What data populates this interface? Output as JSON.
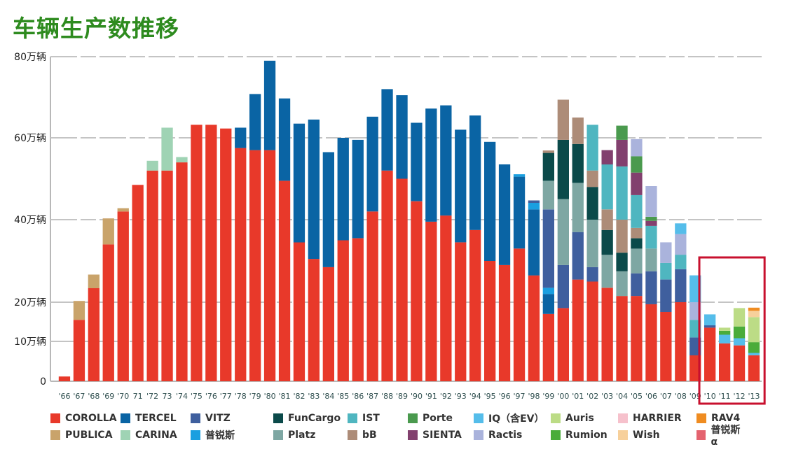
{
  "title": "车辆生产数推移",
  "chart_data": {
    "type": "bar",
    "stacked": true,
    "title": "车辆生产数推移",
    "xlabel": "",
    "ylabel": "",
    "ylim": [
      0,
      80
    ],
    "y_ticks": [
      {
        "value": 0,
        "label": "0"
      },
      {
        "value": 10,
        "label": "10万辆"
      },
      {
        "value": 20,
        "label": "20万辆"
      },
      {
        "value": 40,
        "label": "40万辆"
      },
      {
        "value": 60,
        "label": "60万辆"
      },
      {
        "value": 80,
        "label": "80万辆"
      }
    ],
    "units": "万辆",
    "grid": true,
    "legend_position": "bottom",
    "highlight": {
      "from": "'10",
      "to": "'13",
      "color": "#c8102e"
    },
    "categories": [
      "'66",
      "'67",
      "'68",
      "'69",
      "'70",
      "71",
      "'72",
      "73",
      "'74",
      "'75",
      "'76",
      "'77",
      "'78",
      "'79",
      "'80",
      "'81",
      "'82",
      "'83",
      "'84",
      "'85",
      "'86",
      "'87",
      "'88",
      "'89",
      "'90",
      "'91",
      "'92",
      "'93",
      "'94",
      "'95",
      "'96",
      "'97",
      "'98",
      "'99",
      "'00",
      "'01",
      "'02",
      "'03",
      "'04",
      "'05",
      "'06",
      "'07",
      "'08",
      "'09",
      "'10",
      "'11",
      "'12",
      "'13"
    ],
    "series": [
      {
        "name": "COROLLA",
        "color": "#e8392a",
        "values": [
          1.2,
          15.5,
          23.4,
          34,
          42,
          48.5,
          52,
          52,
          54,
          63.2,
          63.2,
          62.3,
          57.5,
          57,
          57,
          49.5,
          34.5,
          30.5,
          28.5,
          35,
          35.5,
          42,
          52,
          50,
          44.5,
          39.5,
          41,
          34.5,
          37.5,
          30,
          29,
          33,
          26.5,
          17,
          18.5,
          25.5,
          25,
          23.5,
          21.5,
          21.5,
          19.5,
          17.5,
          20,
          6.5,
          13.5,
          9.5,
          9,
          6.5
        ]
      },
      {
        "name": "PUBLICA",
        "color": "#c9a36a",
        "values": [
          0,
          4.8,
          3.3,
          6.3,
          0.8,
          0,
          0,
          0,
          0,
          0,
          0,
          0,
          0,
          0,
          0,
          0,
          0,
          0,
          0,
          0,
          0,
          0,
          0,
          0,
          0,
          0,
          0,
          0,
          0,
          0,
          0,
          0,
          0,
          0,
          0,
          0,
          0,
          0,
          0,
          0,
          0,
          0,
          0,
          0,
          0,
          0,
          0,
          0
        ]
      },
      {
        "name": "TERCEL",
        "color": "#0a64a4",
        "values": [
          0,
          0,
          0,
          0,
          0,
          0,
          0,
          0,
          0,
          0,
          0,
          0,
          5,
          13.8,
          22,
          20.2,
          29,
          34,
          28,
          25,
          24,
          23.2,
          20,
          20.5,
          19.2,
          27.7,
          27,
          27.5,
          28,
          29,
          24.5,
          17.5,
          16,
          5,
          0,
          0,
          0,
          0,
          0,
          0,
          0,
          0,
          0,
          0,
          0,
          0,
          0,
          0
        ]
      },
      {
        "name": "CARINA",
        "color": "#9fd3b4",
        "values": [
          0,
          0,
          0,
          0,
          0,
          0,
          2.4,
          10.5,
          1.3,
          0,
          0,
          0,
          0,
          0,
          0,
          0,
          0,
          0,
          0,
          0,
          0,
          0,
          0,
          0,
          0,
          0,
          0,
          0,
          0,
          0,
          0,
          0,
          0,
          0,
          0,
          0,
          0,
          0,
          0,
          0,
          0,
          0,
          0,
          0,
          0,
          0,
          0,
          0
        ]
      },
      {
        "name": "普锐斯",
        "color": "#1a9fe0",
        "values": [
          0,
          0,
          0,
          0,
          0,
          0,
          0,
          0,
          0,
          0,
          0,
          0,
          0,
          0,
          0,
          0,
          0,
          0,
          0,
          0,
          0,
          0,
          0,
          0,
          0,
          0,
          0,
          0,
          0,
          0,
          0,
          0.6,
          1.6,
          1.5,
          0,
          0,
          0,
          0,
          0,
          0,
          0,
          0,
          0,
          0,
          0,
          0,
          0,
          0
        ]
      },
      {
        "name": "VITZ",
        "color": "#3f5f9e",
        "values": [
          0,
          0,
          0,
          0,
          0,
          0,
          0,
          0,
          0,
          0,
          0,
          0,
          0,
          0,
          0,
          0,
          0,
          0,
          0,
          0,
          0,
          0,
          0,
          0,
          0,
          0,
          0,
          0,
          0,
          0,
          0,
          0,
          0.6,
          19,
          10.5,
          11.5,
          3.5,
          0,
          0,
          5.5,
          8,
          8,
          8,
          4.5,
          0.6,
          0,
          0,
          0
        ]
      },
      {
        "name": "Platz",
        "color": "#7ea7a3",
        "values": [
          0,
          0,
          0,
          0,
          0,
          0,
          0,
          0,
          0,
          0,
          0,
          0,
          0,
          0,
          0,
          0,
          0,
          0,
          0,
          0,
          0,
          0,
          0,
          0,
          0,
          0,
          0,
          0,
          0,
          0,
          0,
          0,
          0,
          7,
          16,
          12,
          11.5,
          8,
          6,
          6,
          5.5,
          0,
          0,
          0,
          0,
          0,
          0,
          0
        ]
      },
      {
        "name": "FunCargo",
        "color": "#0b4a4a",
        "values": [
          0,
          0,
          0,
          0,
          0,
          0,
          0,
          0,
          0,
          0,
          0,
          0,
          0,
          0,
          0,
          0,
          0,
          0,
          0,
          0,
          0,
          0,
          0,
          0,
          0,
          0,
          0,
          0,
          0,
          0,
          0,
          0,
          0,
          6.8,
          14.5,
          9.5,
          8,
          6,
          4.5,
          2.5,
          0,
          0,
          0,
          0,
          0,
          0,
          0,
          0
        ]
      },
      {
        "name": "bB",
        "color": "#ad8c78",
        "values": [
          0,
          0,
          0,
          0,
          0,
          0,
          0,
          0,
          0,
          0,
          0,
          0,
          0,
          0,
          0,
          0,
          0,
          0,
          0,
          0,
          0,
          0,
          0,
          0,
          0,
          0,
          0,
          0,
          0,
          0,
          0,
          0,
          0,
          0.6,
          9.9,
          6.5,
          4,
          5,
          8,
          2.5,
          0,
          0,
          0,
          0,
          0,
          0,
          0,
          0
        ]
      },
      {
        "name": "IST",
        "color": "#4fb6c0",
        "values": [
          0,
          0,
          0,
          0,
          0,
          0,
          0,
          0,
          0,
          0,
          0,
          0,
          0,
          0,
          0,
          0,
          0,
          0,
          0,
          0,
          0,
          0,
          0,
          0,
          0,
          0,
          0,
          0,
          0,
          0,
          0,
          0,
          0,
          0,
          0,
          0,
          11.2,
          11,
          13,
          8,
          5.5,
          4,
          3.5,
          4.5,
          0,
          0,
          0,
          0
        ]
      },
      {
        "name": "SIENTA",
        "color": "#82406e",
        "values": [
          0,
          0,
          0,
          0,
          0,
          0,
          0,
          0,
          0,
          0,
          0,
          0,
          0,
          0,
          0,
          0,
          0,
          0,
          0,
          0,
          0,
          0,
          0,
          0,
          0,
          0,
          0,
          0,
          0,
          0,
          0,
          0,
          0,
          0,
          0,
          0,
          0,
          3.5,
          6.5,
          5.5,
          1.2,
          0,
          0,
          0,
          0,
          0,
          0,
          0
        ]
      },
      {
        "name": "Porte",
        "color": "#4a9a4e",
        "values": [
          0,
          0,
          0,
          0,
          0,
          0,
          0,
          0,
          0,
          0,
          0,
          0,
          0,
          0,
          0,
          0,
          0,
          0,
          0,
          0,
          0,
          0,
          0,
          0,
          0,
          0,
          0,
          0,
          0,
          0,
          0,
          0,
          0,
          0,
          0,
          0,
          0,
          0,
          3.5,
          4,
          1,
          0,
          0,
          0,
          0,
          0,
          0,
          0
        ]
      },
      {
        "name": "Ractis",
        "color": "#aab3dc",
        "values": [
          0,
          0,
          0,
          0,
          0,
          0,
          0,
          0,
          0,
          0,
          0,
          0,
          0,
          0,
          0,
          0,
          0,
          0,
          0,
          0,
          0,
          0,
          0,
          0,
          0,
          0,
          0,
          0,
          0,
          0,
          0,
          0,
          0,
          0,
          0,
          0,
          0,
          0,
          0,
          4.2,
          7.5,
          5,
          5,
          4.5,
          0,
          0,
          0,
          0
        ]
      },
      {
        "name": "IQ（含EV）",
        "color": "#55bdea",
        "values": [
          0,
          0,
          0,
          0,
          0,
          0,
          0,
          0,
          0,
          0,
          0,
          0,
          0,
          0,
          0,
          0,
          0,
          0,
          0,
          0,
          0,
          0,
          0,
          0,
          0,
          0,
          0,
          0,
          0,
          0,
          0,
          0,
          0,
          0,
          0,
          0,
          0,
          0,
          0,
          0,
          0,
          0,
          2.6,
          6.5,
          2.8,
          2.2,
          1.8,
          0.6
        ]
      },
      {
        "name": "Rumion",
        "color": "#4aac3a",
        "values": [
          0,
          0,
          0,
          0,
          0,
          0,
          0,
          0,
          0,
          0,
          0,
          0,
          0,
          0,
          0,
          0,
          0,
          0,
          0,
          0,
          0,
          0,
          0,
          0,
          0,
          0,
          0,
          0,
          0,
          0,
          0,
          0,
          0,
          0,
          0,
          0,
          0,
          0,
          0,
          0,
          0,
          0,
          0,
          0,
          0,
          1,
          3,
          2.7
        ]
      },
      {
        "name": "Auris",
        "color": "#bcdc86",
        "values": [
          0,
          0,
          0,
          0,
          0,
          0,
          0,
          0,
          0,
          0,
          0,
          0,
          0,
          0,
          0,
          0,
          0,
          0,
          0,
          0,
          0,
          0,
          0,
          0,
          0,
          0,
          0,
          0,
          0,
          0,
          0,
          0,
          0,
          0,
          0,
          0,
          0,
          0,
          0,
          0,
          0,
          0,
          0,
          0,
          0,
          0.8,
          4.7,
          6.4
        ]
      },
      {
        "name": "Wish",
        "color": "#f7d09b",
        "values": [
          0,
          0,
          0,
          0,
          0,
          0,
          0,
          0,
          0,
          0,
          0,
          0,
          0,
          0,
          0,
          0,
          0,
          0,
          0,
          0,
          0,
          0,
          0,
          0,
          0,
          0,
          0,
          0,
          0,
          0,
          0,
          0,
          0,
          0,
          0,
          0,
          0,
          0,
          0,
          0,
          0,
          0,
          0,
          0,
          0,
          0,
          0,
          1.6
        ]
      },
      {
        "name": "RAV4",
        "color": "#ef8c21",
        "values": [
          0,
          0,
          0,
          0,
          0,
          0,
          0,
          0,
          0,
          0,
          0,
          0,
          0,
          0,
          0,
          0,
          0,
          0,
          0,
          0,
          0,
          0,
          0,
          0,
          0,
          0,
          0,
          0,
          0,
          0,
          0,
          0,
          0,
          0,
          0,
          0,
          0,
          0,
          0,
          0,
          0,
          0,
          0,
          0,
          0,
          0,
          0,
          0.8
        ]
      },
      {
        "name": "HARRIER",
        "color": "#f6c1cc",
        "values": [
          0,
          0,
          0,
          0,
          0,
          0,
          0,
          0,
          0,
          0,
          0,
          0,
          0,
          0,
          0,
          0,
          0,
          0,
          0,
          0,
          0,
          0,
          0,
          0,
          0,
          0,
          0,
          0,
          0,
          0,
          0,
          0,
          0,
          0,
          0,
          0,
          0,
          0,
          0,
          0,
          0,
          0,
          0,
          0,
          0,
          0,
          0,
          0
        ]
      },
      {
        "name": "普锐斯α",
        "color": "#e4636f",
        "values": [
          0,
          0,
          0,
          0,
          0,
          0,
          0,
          0,
          0,
          0,
          0,
          0,
          0,
          0,
          0,
          0,
          0,
          0,
          0,
          0,
          0,
          0,
          0,
          0,
          0,
          0,
          0,
          0,
          0,
          0,
          0,
          0,
          0,
          0,
          0,
          0,
          0,
          0,
          0,
          0,
          0,
          0,
          0,
          0,
          0,
          0,
          0,
          0
        ]
      }
    ],
    "legend": [
      [
        {
          "name": "COROLLA",
          "color": "#e8392a"
        },
        {
          "name": "TERCEL",
          "color": "#0a64a4"
        },
        {
          "name": "VITZ",
          "color": "#3f5f9e"
        },
        {
          "name": "FunCargo",
          "color": "#0b4a4a"
        },
        {
          "name": "IST",
          "color": "#4fb6c0"
        },
        {
          "name": "Porte",
          "color": "#4a9a4e"
        },
        {
          "name": "IQ（含EV）",
          "color": "#55bdea"
        },
        {
          "name": "Auris",
          "color": "#bcdc86"
        },
        {
          "name": "HARRIER",
          "color": "#f6c1cc"
        },
        {
          "name": "RAV4",
          "color": "#ef8c21"
        }
      ],
      [
        {
          "name": "PUBLICA",
          "color": "#c9a36a"
        },
        {
          "name": "CARINA",
          "color": "#9fd3b4"
        },
        {
          "name": "普锐斯",
          "color": "#1a9fe0"
        },
        {
          "name": "Platz",
          "color": "#7ea7a3"
        },
        {
          "name": "bB",
          "color": "#ad8c78"
        },
        {
          "name": "SIENTA",
          "color": "#82406e"
        },
        {
          "name": "Ractis",
          "color": "#aab3dc"
        },
        {
          "name": "Rumion",
          "color": "#4aac3a"
        },
        {
          "name": "Wish",
          "color": "#f7d09b"
        },
        {
          "name": "普锐斯α",
          "color": "#e4636f"
        }
      ]
    ]
  }
}
